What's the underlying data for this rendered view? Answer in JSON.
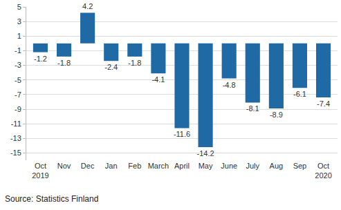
{
  "chart_data": {
    "type": "bar",
    "categories": [
      "Oct\n2019",
      "Nov",
      "Dec",
      "Jan",
      "Feb",
      "March",
      "April",
      "May",
      "June",
      "July",
      "Aug",
      "Sep",
      "Oct\n2020"
    ],
    "values": [
      -1.2,
      -1.8,
      4.2,
      -2.4,
      -1.8,
      -4.1,
      -11.6,
      -14.2,
      -4.8,
      -8.1,
      -8.9,
      -6.1,
      -7.4
    ],
    "color": "#1f69a5",
    "ylim": [
      -16,
      5
    ],
    "yticks": [
      -15,
      -13,
      -11,
      -9,
      -7,
      -5,
      -3,
      -1,
      1,
      3,
      5
    ],
    "grid": true,
    "data_labels": true,
    "annotations": [
      "Source: Statistics Finland"
    ]
  }
}
